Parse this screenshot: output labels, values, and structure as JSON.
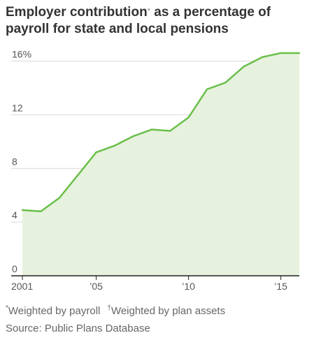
{
  "title": {
    "part1": "Employer contribution",
    "mark": "*",
    "part2": " as a percentage of payroll for state and local pensions"
  },
  "footnotes": {
    "note1_mark": "*",
    "note1": "Weighted by payroll",
    "note2_mark": "†",
    "note2": "Weighted by plan assets"
  },
  "source": "Source: Public Plans Database",
  "colors": {
    "line": "#6abf4b",
    "fill": "#e6f2dd",
    "grid": "#d9d9d9",
    "axis": "#222222"
  },
  "chart_data": {
    "type": "area",
    "x": [
      2001,
      2002,
      2003,
      2004,
      2005,
      2006,
      2007,
      2008,
      2009,
      2010,
      2011,
      2012,
      2013,
      2014,
      2015,
      2016
    ],
    "values": [
      4.9,
      4.8,
      5.8,
      7.5,
      9.2,
      9.7,
      10.4,
      10.9,
      10.8,
      11.8,
      13.9,
      14.4,
      15.6,
      16.3,
      16.6,
      16.6
    ],
    "ylim": [
      0,
      16.6
    ],
    "yticks": [
      0,
      4,
      8,
      12,
      16
    ],
    "ytick_labels": [
      "0",
      "4",
      "8",
      "12",
      "16%"
    ],
    "xticks": [
      2001,
      2005,
      2010,
      2015
    ],
    "xtick_labels": [
      "2001",
      "’05",
      "’10",
      "’15"
    ],
    "grid": true
  }
}
